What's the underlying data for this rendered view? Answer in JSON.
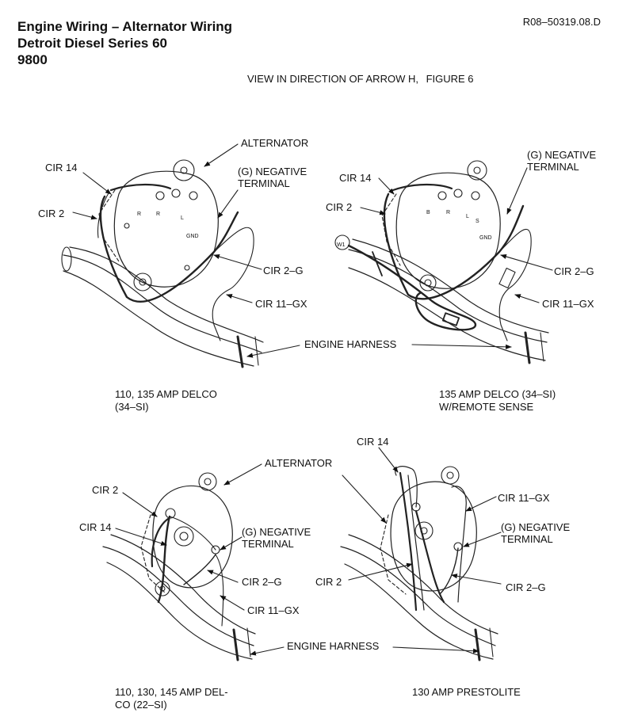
{
  "header": {
    "title_line1": "Engine Wiring – Alternator Wiring",
    "title_line2": "Detroit Diesel Series 60",
    "title_line3": "9800",
    "doc_id": "R08–50319.08.D",
    "view_text": "VIEW IN DIRECTION OF ARROW H,",
    "figure": "FIGURE 6"
  },
  "panels": [
    {
      "caption": "110, 135 AMP DELCO\n(34–SI)",
      "labels": {
        "alternator": "ALTERNATOR",
        "cir14": "CIR 14",
        "cir2": "CIR 2",
        "neg_terminal": "(G) NEGATIVE\nTERMINAL",
        "cir2g": "CIR 2–G",
        "cir11gx": "CIR 11–GX"
      },
      "terminal_marks": [
        "R",
        "R",
        "L",
        "GND"
      ]
    },
    {
      "caption": "135 AMP DELCO (34–SI)\nW/REMOTE SENSE",
      "labels": {
        "cir14": "CIR 14",
        "cir2": "CIR 2",
        "neg_terminal": "(G) NEGATIVE\nTERMINAL",
        "cir2g": "CIR 2–G",
        "cir11gx": "CIR 11–GX"
      },
      "terminal_marks": [
        "B",
        "R",
        "L",
        "S",
        "GND"
      ],
      "remote_mark": "W1"
    },
    {
      "caption": "110, 130, 145 AMP DEL-\nCO (22–SI)",
      "labels": {
        "alternator": "ALTERNATOR",
        "cir2": "CIR 2",
        "cir14": "CIR 14",
        "neg_terminal": "(G) NEGATIVE\nTERMINAL",
        "cir2g": "CIR 2–G",
        "cir11gx": "CIR 11–GX"
      }
    },
    {
      "caption": "130 AMP PRESTOLITE",
      "labels": {
        "cir14": "CIR 14",
        "cir11gx": "CIR 11–GX",
        "neg_terminal": "(G) NEGATIVE\nTERMINAL",
        "cir2": "CIR 2",
        "cir2g": "CIR 2–G"
      }
    }
  ],
  "engine_harness_label": "ENGINE HARNESS"
}
